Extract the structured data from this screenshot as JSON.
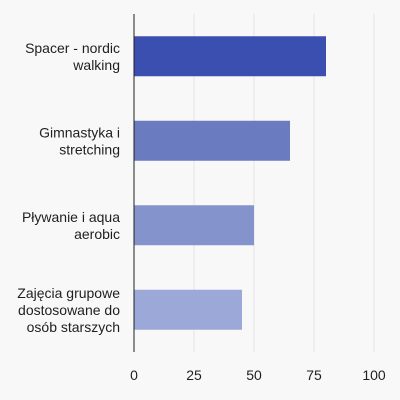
{
  "chart_data": {
    "type": "bar",
    "orientation": "horizontal",
    "categories": [
      [
        "Spacer - nordic",
        "walking"
      ],
      [
        "Gimnastyka i",
        "stretching"
      ],
      [
        "Pływanie i aqua",
        "aerobic"
      ],
      [
        "Zajęcia grupowe",
        "dostosowane do",
        "osób starszych"
      ]
    ],
    "values": [
      80,
      65,
      50,
      45
    ],
    "colors": [
      "#3b4fb0",
      "#6a7bbf",
      "#8493cc",
      "#9ca8d8"
    ],
    "xlim": [
      0,
      100
    ],
    "xticks": [
      0,
      25,
      50,
      75,
      100
    ],
    "grid": true,
    "title": "",
    "xlabel": "",
    "ylabel": ""
  }
}
